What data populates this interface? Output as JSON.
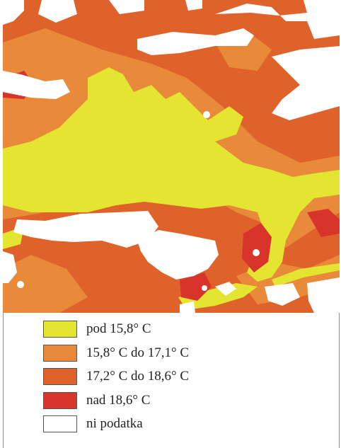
{
  "map": {
    "colors": {
      "below": "#e3e531",
      "mid_low": "#e88a3a",
      "mid_high": "#e0622b",
      "above": "#d8342c",
      "no_data": "#ffffff"
    }
  },
  "legend": {
    "items": [
      {
        "label": "pod 15,8° C",
        "color": "#e3e531"
      },
      {
        "label": "15,8° C do 17,1° C",
        "color": "#e88a3a"
      },
      {
        "label": "17,2° C do 18,6° C",
        "color": "#e0622b"
      },
      {
        "label": "nad 18,6° C",
        "color": "#d8342c"
      },
      {
        "label": "ni podatka",
        "color": "#ffffff"
      }
    ]
  }
}
